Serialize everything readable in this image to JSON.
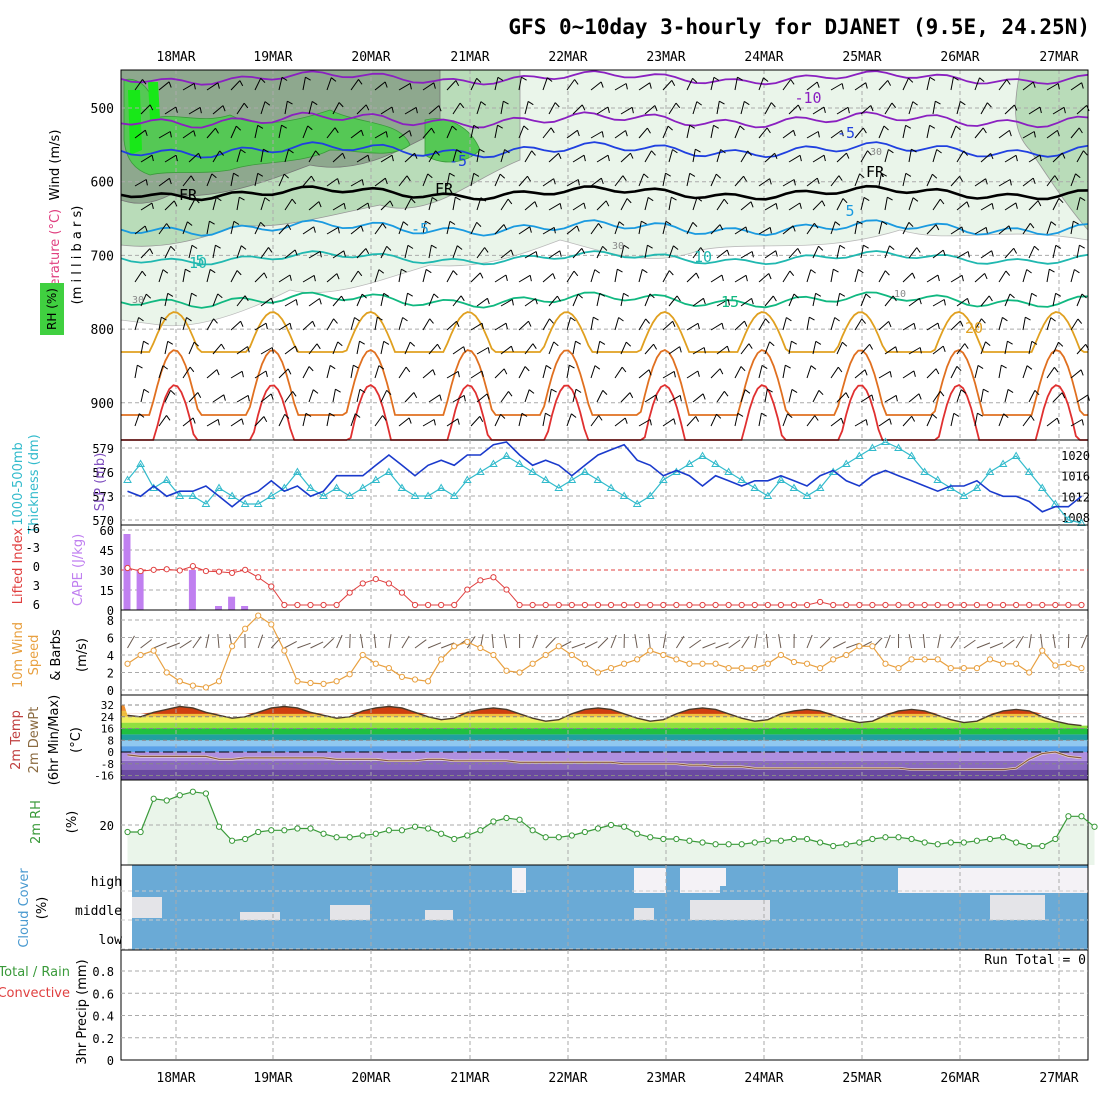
{
  "title": "GFS 0~10day 3-hourly for DJANET (9.5E, 24.25N)",
  "dates": [
    "18MAR",
    "19MAR",
    "20MAR",
    "21MAR",
    "22MAR",
    "23MAR",
    "24MAR",
    "25MAR",
    "26MAR",
    "27MAR"
  ],
  "panels": {
    "upper": {
      "label_wind": "Wind (m/s)",
      "label_temp": "Temperature (°C)",
      "label_mb": "(m i l l i b a r s)",
      "label_rh": "RH (%)",
      "pressure_ticks": [
        "500",
        "600",
        "700",
        "800",
        "900"
      ],
      "freezing_label": "FR",
      "contour_labels": [
        "-10",
        "-5",
        "-5",
        "FR",
        "FR",
        "FR",
        "-5",
        "5",
        "5",
        "10",
        "10",
        "15",
        "20",
        "30",
        "30",
        "10",
        "30"
      ]
    },
    "thick": {
      "label_a": "1000-500mb",
      "label_b": "Thickness (dm)",
      "label_slp": "SLP (mb)",
      "left_ticks": [
        "579",
        "576",
        "573",
        "570"
      ],
      "right_ticks": [
        "1020",
        "1016",
        "1012",
        "1008"
      ]
    },
    "cape": {
      "label_li": "Lifted Index",
      "label_cape": "CAPE (J/kg)",
      "li_ticks": [
        "-6",
        "-3",
        "0",
        "3",
        "6"
      ],
      "cape_ticks": [
        "60",
        "45",
        "30",
        "15",
        "0"
      ]
    },
    "wind10": {
      "label_a": "10m Wind",
      "label_b": "Speed",
      "label_c": "(m/s)",
      "label_d": "& Barbs",
      "ticks": [
        "8",
        "6",
        "4",
        "2",
        "0"
      ]
    },
    "temp2m": {
      "label_a": "2m Temp",
      "label_b": "2m DewPt",
      "label_c": "(6hr Min/Max)",
      "label_d": "(°C)",
      "ticks": [
        "32",
        "24",
        "16",
        "8",
        "0",
        "-8",
        "-16"
      ]
    },
    "rh2m": {
      "label_a": "2m RH",
      "label_b": "(%)",
      "ticks": [
        "20"
      ]
    },
    "cloud": {
      "label_a": "Cloud Cover",
      "label_b": "(%)",
      "ticks": [
        "high",
        "middle",
        "low"
      ]
    },
    "precip": {
      "label_a": "Total / Rain",
      "label_b": "Convective",
      "label_c": "3hr Precip (mm)",
      "ticks": [
        "0.8",
        "0.6",
        "0.4",
        "0.2",
        "0"
      ],
      "run_total": "Run Total = 0"
    }
  },
  "colors": {
    "thickness": "#33bbcc",
    "slp": "#1a3acc",
    "wind_speed": "#e8a040",
    "rh": "#3a9a3a",
    "cloud": "#6aaad6",
    "cape": "#c080f0",
    "li": "#e04040"
  },
  "chart_data": [
    {
      "type": "line",
      "title": "1000-500mb Thickness (dm)",
      "x": "3-hourly 17MAR12Z-27MAR06Z",
      "values": [
        575,
        577,
        574,
        575,
        573,
        573,
        572,
        574,
        573,
        572,
        572,
        573,
        574,
        576,
        574,
        573,
        574,
        573,
        574,
        575,
        576,
        574,
        573,
        573,
        574,
        573,
        575,
        576,
        577,
        578,
        577,
        576,
        575,
        574,
        575,
        576,
        575,
        574,
        573,
        572,
        573,
        575,
        576,
        577,
        578,
        577,
        576,
        575,
        574,
        573,
        575,
        574,
        573,
        574,
        576,
        577,
        578,
        579,
        580,
        579,
        578,
        576,
        575,
        574,
        573,
        574,
        576,
        577,
        578,
        576,
        574,
        572,
        570,
        569
      ],
      "ylim": [
        569,
        580
      ]
    },
    {
      "type": "line",
      "title": "SLP (mb)",
      "x": "3-hourly 17MAR12Z-27MAR06Z",
      "values": [
        1013,
        1012,
        1014,
        1012,
        1013,
        1013,
        1014,
        1012,
        1010,
        1012,
        1013,
        1015,
        1013,
        1014,
        1012,
        1013,
        1016,
        1016,
        1016,
        1018,
        1020,
        1018,
        1016,
        1018,
        1019,
        1018,
        1020,
        1020,
        1022,
        1023,
        1020,
        1018,
        1019,
        1018,
        1016,
        1018,
        1020,
        1021,
        1022,
        1019,
        1018,
        1016,
        1017,
        1016,
        1014,
        1016,
        1015,
        1014,
        1015,
        1015,
        1016,
        1015,
        1014,
        1016,
        1017,
        1015,
        1014,
        1016,
        1017,
        1016,
        1015,
        1014,
        1013,
        1014,
        1014,
        1015,
        1013,
        1012,
        1012,
        1011,
        1009,
        1010,
        1010,
        1012
      ],
      "ylim": [
        1007,
        1022
      ]
    },
    {
      "type": "bar",
      "title": "CAPE (J/kg)",
      "values": [
        57,
        30,
        0,
        0,
        0,
        30,
        0,
        3,
        10,
        3,
        0,
        0,
        0,
        0,
        0,
        0,
        0,
        0,
        0,
        0,
        0,
        0,
        0,
        0,
        0,
        0,
        0,
        0,
        0,
        0,
        0,
        0,
        0,
        0,
        0,
        0,
        0,
        0,
        0,
        0,
        0,
        0,
        0,
        0,
        0,
        0,
        0,
        0,
        0,
        0,
        0,
        0,
        0,
        0,
        0,
        0,
        0,
        0,
        0,
        0,
        0,
        0,
        0,
        0,
        0,
        0,
        0,
        0,
        0,
        0,
        0,
        0,
        0,
        0
      ],
      "ylim": [
        0,
        60
      ]
    },
    {
      "type": "line",
      "title": "Lifted Index",
      "values": [
        0,
        0.5,
        0.3,
        0.2,
        0.4,
        -0.3,
        0.5,
        0.6,
        0.8,
        0.3,
        1.5,
        3,
        6,
        6,
        6,
        6,
        6,
        4,
        2.5,
        1.8,
        2.5,
        4,
        6,
        6,
        6,
        6,
        3.5,
        2,
        1.5,
        3.5,
        6,
        6,
        6,
        6,
        6,
        6,
        6,
        6,
        6,
        6,
        6,
        6,
        6,
        6,
        6,
        6,
        6,
        6,
        6,
        6,
        6,
        6,
        6,
        5.5,
        6,
        6,
        6,
        6,
        6,
        6,
        6,
        6,
        6,
        6,
        6,
        6,
        6,
        6,
        6,
        6,
        6,
        6,
        6,
        6
      ],
      "ylim": [
        -6,
        6
      ]
    },
    {
      "type": "line",
      "title": "10m Wind Speed (m/s)",
      "values": [
        3,
        4,
        4.5,
        2,
        1,
        0.5,
        0.3,
        1,
        5,
        7,
        8.5,
        7.5,
        4.5,
        1,
        0.8,
        0.7,
        1,
        1.8,
        4,
        3,
        2.5,
        1.5,
        1.2,
        1,
        3.5,
        5,
        5.5,
        4.8,
        4,
        2.2,
        2,
        3,
        4,
        5,
        4,
        3,
        2,
        2.5,
        3,
        3.5,
        4.5,
        4,
        3.5,
        3,
        3,
        3,
        2.5,
        2.5,
        2.5,
        3,
        4,
        3.2,
        3,
        2.5,
        3.5,
        4,
        5,
        5,
        3,
        2.5,
        3.5,
        3.5,
        3.5,
        2.5,
        2.5,
        2.5,
        3.5,
        3,
        3,
        2,
        4.5,
        2.8,
        3,
        2.5
      ],
      "ylim": [
        0,
        8
      ]
    },
    {
      "type": "line",
      "title": "2m RH (%)",
      "values": [
        16,
        16,
        35,
        34,
        37,
        39,
        38,
        19,
        11,
        12,
        16,
        17,
        17,
        18,
        18,
        15,
        13,
        13,
        14,
        15,
        17,
        17,
        19,
        18,
        15,
        12,
        14,
        17,
        22,
        24,
        23,
        17,
        13,
        13,
        14,
        16,
        18,
        20,
        19,
        15,
        13,
        12,
        12,
        11,
        10,
        9,
        9,
        9,
        10,
        11,
        11,
        12,
        12,
        10,
        8,
        9,
        10,
        12,
        13,
        13,
        12,
        10,
        9,
        10,
        10,
        11,
        12,
        13,
        10,
        8,
        8,
        12,
        25,
        25,
        19
      ],
      "ylim": [
        0,
        45
      ]
    },
    {
      "type": "line",
      "title": "2m Temp (°C)",
      "values": [
        25,
        24,
        27,
        29,
        31,
        30,
        27,
        25,
        23,
        24,
        27,
        30,
        31,
        30,
        27,
        25,
        23,
        24,
        28,
        30,
        31,
        30,
        27,
        24,
        22,
        23,
        27,
        29,
        30,
        29,
        26,
        23,
        21,
        22,
        26,
        29,
        30,
        29,
        26,
        23,
        21,
        22,
        26,
        29,
        30,
        29,
        26,
        23,
        21,
        22,
        26,
        28,
        29,
        28,
        25,
        22,
        20,
        21,
        25,
        28,
        29,
        28,
        25,
        22,
        20,
        21,
        25,
        28,
        29,
        28,
        24,
        21,
        19,
        18
      ],
      "ylim": [
        -18,
        36
      ]
    },
    {
      "type": "line",
      "title": "2m DewPt (°C)",
      "values": [
        -2,
        -3,
        -3,
        -3,
        -3,
        -3,
        -3,
        -5,
        -5,
        -4,
        -4,
        -4,
        -4,
        -4,
        -4,
        -4,
        -5,
        -5,
        -5,
        -5,
        -6,
        -6,
        -6,
        -5,
        -5,
        -6,
        -6,
        -6,
        -6,
        -6,
        -7,
        -7,
        -7,
        -7,
        -7,
        -7,
        -7,
        -7,
        -8,
        -8,
        -8,
        -8,
        -8,
        -9,
        -9,
        -10,
        -10,
        -10,
        -11,
        -11,
        -11,
        -11,
        -11,
        -11,
        -11,
        -11,
        -11,
        -11,
        -11,
        -11,
        -12,
        -12,
        -12,
        -12,
        -12,
        -12,
        -12,
        -12,
        -11,
        -5,
        -1,
        0,
        -3,
        -4
      ],
      "ylim": [
        -18,
        36
      ]
    },
    {
      "type": "line",
      "title": "3hr Precip (mm)",
      "values": [
        0,
        0,
        0,
        0,
        0,
        0,
        0,
        0,
        0,
        0
      ],
      "ylim": [
        0,
        0.9
      ]
    }
  ]
}
